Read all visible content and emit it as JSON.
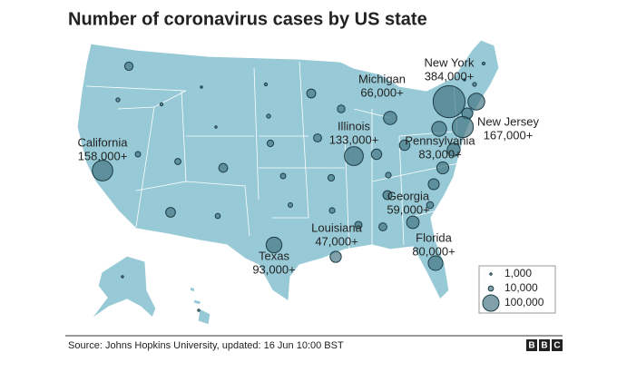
{
  "title": "Number of coronavirus cases by US state",
  "states": [
    {
      "name": "California",
      "value": 158000,
      "value_label": "158,000+"
    },
    {
      "name": "Texas",
      "value": 93000,
      "value_label": "93,000+"
    },
    {
      "name": "Louisiana",
      "value": 47000,
      "value_label": "47,000+"
    },
    {
      "name": "Florida",
      "value": 80000,
      "value_label": "80,000+"
    },
    {
      "name": "Georgia",
      "value": 59000,
      "value_label": "59,000+"
    },
    {
      "name": "Illinois",
      "value": 133000,
      "value_label": "133,000+"
    },
    {
      "name": "Michigan",
      "value": 66000,
      "value_label": "66,000+"
    },
    {
      "name": "New York",
      "value": 384000,
      "value_label": "384,000+"
    },
    {
      "name": "New Jersey",
      "value": 167000,
      "value_label": "167,000+"
    },
    {
      "name": "Pennsylvania",
      "value": 83000,
      "value_label": "83,000+"
    }
  ],
  "unlabeled_values": [
    26000,
    5800,
    3300,
    600,
    1000,
    11000,
    14000,
    29000,
    35000,
    9600,
    3100,
    6000,
    16000,
    11000,
    7600,
    30000,
    24000,
    16000,
    12000,
    22000,
    40000,
    12000,
    30000,
    20000,
    24000,
    41000,
    18000,
    45000,
    54000,
    63000,
    105000,
    45000,
    2800,
    5400,
    1100,
    700,
    700
  ],
  "legend": [
    {
      "value": 1000,
      "label": "1,000"
    },
    {
      "value": 10000,
      "label": "10,000"
    },
    {
      "value": 100000,
      "label": "100,000"
    }
  ],
  "source": "Source: Johns Hopkins University, updated: 16 Jun 10:00 BST",
  "logo": [
    "B",
    "B",
    "C"
  ]
}
